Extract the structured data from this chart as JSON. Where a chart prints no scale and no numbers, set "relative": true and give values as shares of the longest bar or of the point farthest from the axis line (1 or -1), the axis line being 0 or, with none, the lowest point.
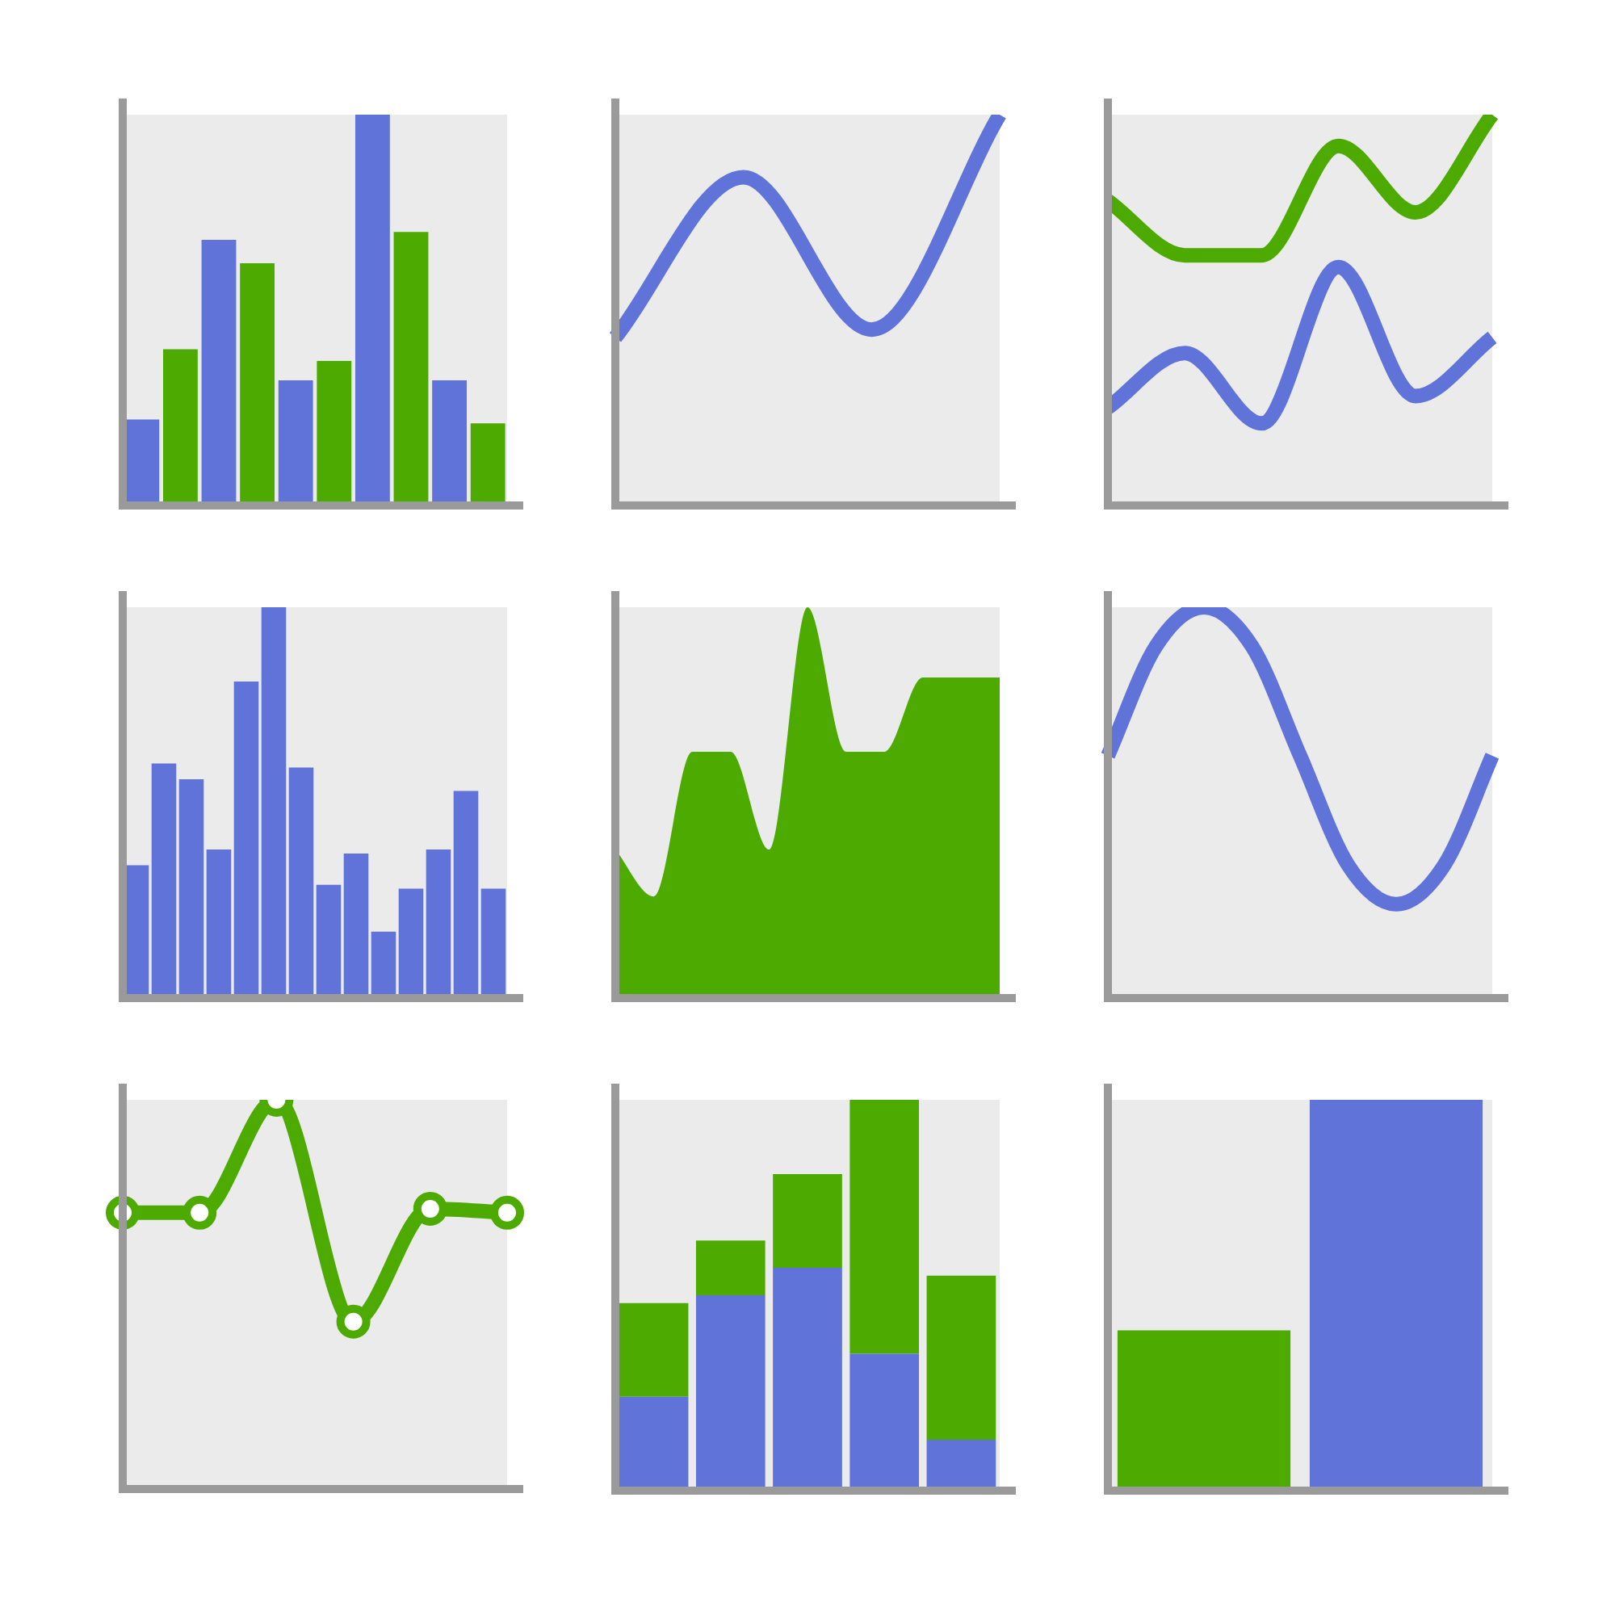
{
  "chart_data": [
    {
      "type": "bar",
      "relative": true,
      "categories": [
        null,
        null,
        null,
        null,
        null,
        null,
        null,
        null,
        null,
        null
      ],
      "values": [
        0.22,
        0.4,
        0.68,
        0.62,
        0.32,
        0.37,
        1,
        0.7,
        0.32,
        0.21
      ],
      "colors": [
        "#5f73d9",
        "#4caa00",
        "#5f73d9",
        "#4caa00",
        "#5f73d9",
        "#4caa00",
        "#5f73d9",
        "#4caa00",
        "#5f73d9",
        "#4caa00"
      ]
    },
    {
      "type": "line",
      "relative": true,
      "categories": [
        null,
        null,
        null,
        null
      ],
      "series": [
        {
          "color": "#5f73d9",
          "values": [
            0.43,
            0.84,
            0.45,
            1
          ]
        }
      ]
    },
    {
      "type": "line",
      "relative": true,
      "categories": [
        null,
        null,
        null,
        null,
        null,
        null
      ],
      "series": [
        {
          "color": "#4caa00",
          "values": [
            0.78,
            0.64,
            0.64,
            0.92,
            0.75,
            1
          ]
        },
        {
          "color": "#5f73d9",
          "values": [
            0.25,
            0.39,
            0.21,
            0.61,
            0.28,
            0.43
          ]
        }
      ]
    },
    {
      "type": "bar",
      "relative": true,
      "categories": [
        null,
        null,
        null,
        null,
        null,
        null,
        null,
        null,
        null,
        null,
        null,
        null,
        null,
        null
      ],
      "values": [
        0.34,
        0.6,
        0.56,
        0.38,
        0.81,
        1,
        0.59,
        0.29,
        0.37,
        0.17,
        0.28,
        0.38,
        0.53,
        0.28
      ],
      "color": "#5f73d9"
    },
    {
      "type": "area",
      "relative": true,
      "categories": [
        null,
        null,
        null,
        null,
        null,
        null,
        null,
        null,
        null,
        null,
        null
      ],
      "series": [
        {
          "color": "#4caa00",
          "values": [
            0.38,
            0.26,
            0.63,
            0.63,
            0.38,
            1,
            0.63,
            0.63,
            0.82,
            0.82,
            0.82
          ]
        }
      ]
    },
    {
      "type": "line",
      "relative": true,
      "categories": [
        null,
        null,
        null,
        null,
        null,
        null,
        null,
        null,
        null
      ],
      "series": [
        {
          "color": "#5f73d9",
          "values": [
            0.62,
            0.9,
            1,
            0.9,
            0.62,
            0.34,
            0.24,
            0.34,
            0.62
          ]
        }
      ]
    },
    {
      "type": "line",
      "relative": true,
      "marker": "circle",
      "categories": [
        null,
        null,
        null,
        null,
        null,
        null
      ],
      "series": [
        {
          "color": "#4caa00",
          "values": [
            0.71,
            0.71,
            1,
            0.43,
            0.72,
            0.71
          ]
        }
      ]
    },
    {
      "type": "bar",
      "relative": true,
      "stacked": true,
      "categories": [
        null,
        null,
        null,
        null,
        null
      ],
      "series": [
        {
          "color": "#5f73d9",
          "values": [
            0.24,
            0.5,
            0.57,
            0.35,
            0.13
          ]
        },
        {
          "color": "#4caa00",
          "values": [
            0.24,
            0.14,
            0.24,
            0.65,
            0.42
          ]
        }
      ]
    },
    {
      "type": "bar",
      "relative": true,
      "categories": [
        null,
        null
      ],
      "values": [
        0.41,
        1
      ],
      "colors": [
        "#4caa00",
        "#5f73d9"
      ]
    }
  ]
}
